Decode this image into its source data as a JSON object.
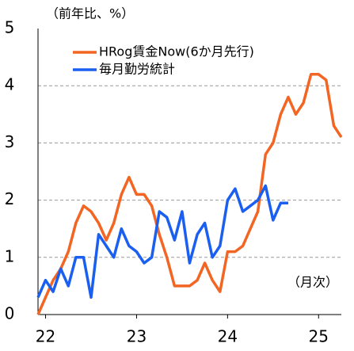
{
  "chart_data": {
    "type": "line",
    "subtitle": "（前年比、%）",
    "annotation": "（月次）",
    "x": [
      21.917,
      22.0,
      22.083,
      22.167,
      22.25,
      22.333,
      22.417,
      22.5,
      22.583,
      22.667,
      22.75,
      22.833,
      22.917,
      23.0,
      23.083,
      23.167,
      23.25,
      23.333,
      23.417,
      23.5,
      23.583,
      23.667,
      23.75,
      23.833,
      23.917,
      24.0,
      24.083,
      24.167,
      24.25,
      24.333,
      24.417,
      24.5,
      24.583,
      24.667,
      24.75,
      24.833,
      24.917,
      25.0,
      25.083,
      25.167,
      25.25
    ],
    "series": [
      {
        "name": "HRog賃金Now(6か月先行)",
        "color": "#f26522",
        "values": [
          0,
          0.3,
          0.6,
          0.8,
          1.1,
          1.6,
          1.9,
          1.8,
          1.6,
          1.3,
          1.6,
          2.1,
          2.4,
          2.1,
          2.1,
          1.9,
          1.4,
          1.0,
          0.5,
          0.5,
          0.5,
          0.6,
          0.9,
          0.6,
          0.4,
          1.1,
          1.1,
          1.2,
          1.5,
          1.8,
          2.8,
          3.0,
          3.5,
          3.8,
          3.5,
          3.7,
          4.2,
          4.2,
          4.1,
          3.3,
          3.1
        ]
      },
      {
        "name": "毎月勤労統計",
        "color": "#1a5ff0",
        "values": [
          0.3,
          0.6,
          0.4,
          0.8,
          0.5,
          1.0,
          1.0,
          0.3,
          1.4,
          1.2,
          1.0,
          1.5,
          1.2,
          1.1,
          0.9,
          1.0,
          1.8,
          1.7,
          1.3,
          1.8,
          0.9,
          1.4,
          1.6,
          1.0,
          1.2,
          2.0,
          2.2,
          1.8,
          1.9,
          2.0,
          2.25,
          1.65,
          1.95,
          1.95,
          null,
          null,
          null,
          null,
          null,
          null,
          null
        ]
      }
    ],
    "xlim": [
      21.917,
      25.25
    ],
    "xticks": [
      22,
      23,
      24,
      25
    ],
    "ylim": [
      0,
      5
    ],
    "yticks": [
      0,
      1,
      2,
      3,
      4,
      5
    ],
    "grid": true
  }
}
